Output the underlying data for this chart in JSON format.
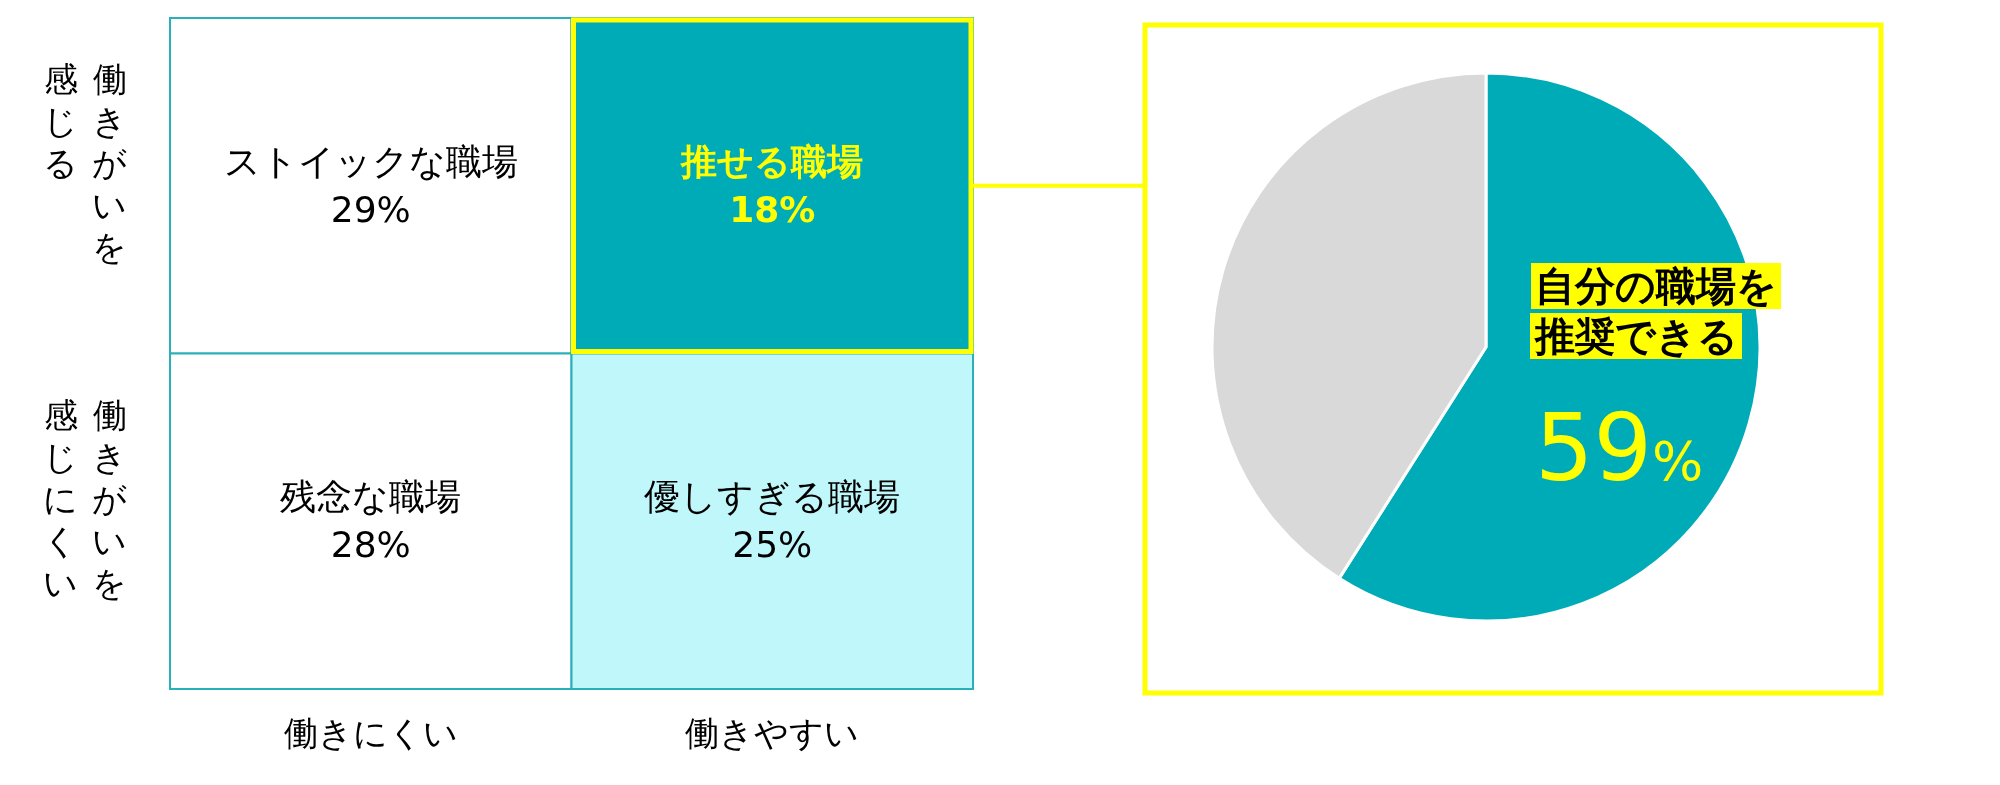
{
  "chart_data": [
    {
      "type": "heatmap",
      "categories": [
        "働きにくい",
        "働きやすい"
      ],
      "y_categories": [
        "働きがいを感じる",
        "働きがいを感じにくい"
      ],
      "cells": [
        [
          29,
          18
        ],
        [
          28,
          25
        ]
      ],
      "cell_labels": [
        [
          "29%",
          "18%"
        ],
        [
          "28%",
          "25%"
        ]
      ],
      "annotations": [
        "ストイックな職場",
        "推せる職場",
        "残念な職場",
        "優しすぎる職場"
      ],
      "colors": [
        [
          "#ffffff",
          "#00abb8"
        ],
        [
          "#ffffff",
          "#bff7fa"
        ]
      ]
    },
    {
      "type": "pie",
      "categories": [
        "自分の職場を推奨できる",
        null
      ],
      "values": [
        59,
        41
      ],
      "colors": [
        "#00abb8",
        "#d9d9d9"
      ],
      "value_labels": [
        "59%",
        null
      ]
    }
  ]
}
